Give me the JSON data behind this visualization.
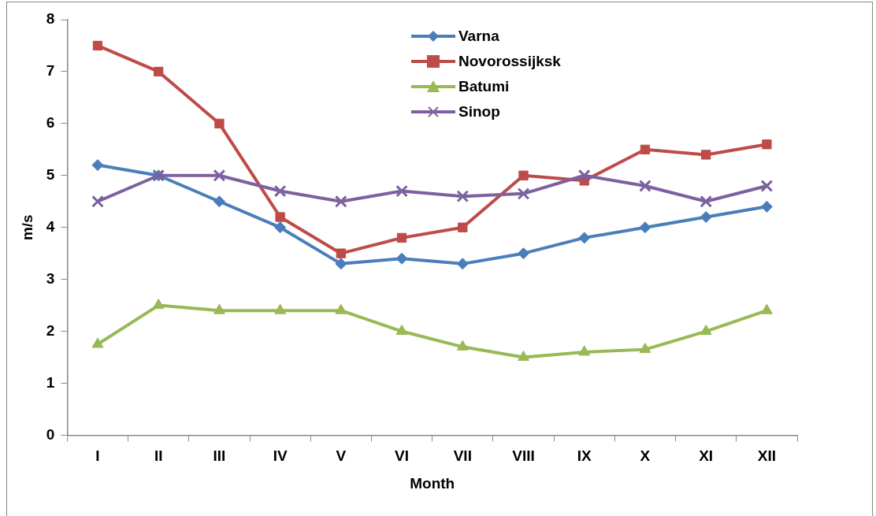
{
  "chart_data": {
    "type": "line",
    "xlabel": "Month",
    "ylabel": "m/s",
    "categories": [
      "I",
      "II",
      "III",
      "IV",
      "V",
      "VI",
      "VII",
      "VIII",
      "IX",
      "X",
      "XI",
      "XII"
    ],
    "series": [
      {
        "name": "Varna",
        "color": "#4a7ebb",
        "marker": "diamond",
        "values": [
          5.2,
          5.0,
          4.5,
          4.0,
          3.3,
          3.4,
          3.3,
          3.5,
          3.8,
          4.0,
          4.2,
          4.4
        ]
      },
      {
        "name": "Novorossijksk",
        "color": "#be4b48",
        "marker": "square",
        "values": [
          7.5,
          7.0,
          6.0,
          4.2,
          3.5,
          3.8,
          4.0,
          5.0,
          4.9,
          5.5,
          5.4,
          5.6
        ]
      },
      {
        "name": "Batumi",
        "color": "#98b954",
        "marker": "triangle",
        "values": [
          1.75,
          2.5,
          2.4,
          2.4,
          2.4,
          2.0,
          1.7,
          1.5,
          1.6,
          1.65,
          2.0,
          2.4
        ]
      },
      {
        "name": "Sinop",
        "color": "#7d60a0",
        "marker": "cross",
        "values": [
          4.5,
          5.0,
          5.0,
          4.7,
          4.5,
          4.7,
          4.6,
          4.65,
          5.0,
          4.8,
          4.5,
          4.8
        ]
      }
    ],
    "ylim": [
      0,
      8
    ],
    "yticks": [
      0,
      1,
      2,
      3,
      4,
      5,
      6,
      7,
      8
    ],
    "grid": false,
    "legend": "top"
  }
}
